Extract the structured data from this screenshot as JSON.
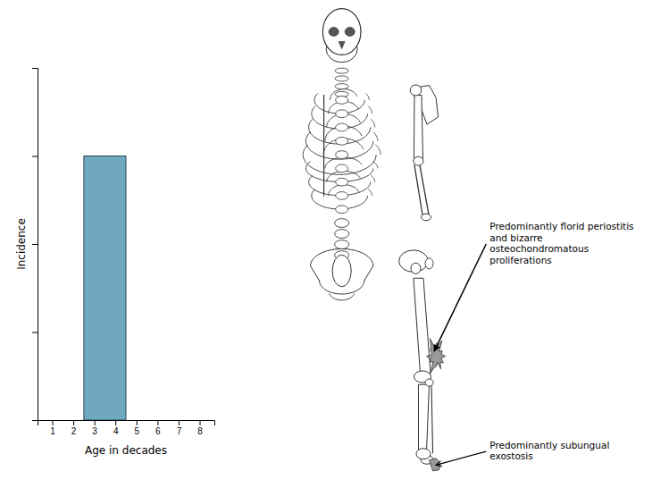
{
  "chart_data": {
    "type": "histogram",
    "bins": [
      2.5,
      4.5
    ],
    "values": [
      0.75
    ],
    "color": "#6fa8c0",
    "xlabel": "Age in decades",
    "ylabel": "Incidence",
    "xlim": [
      0.3,
      8.7
    ],
    "xticks": [
      1,
      2,
      3,
      4,
      5,
      6,
      7,
      8
    ],
    "ylim": [
      0,
      1.0
    ],
    "yticks": [
      0.25,
      0.5,
      0.75
    ],
    "tick_labels": "x",
    "grid": false,
    "annotations": [
      {
        "text": "Predominantly florid periostitis\nand bizarre\nosteochondromatous\nproliferations"
      },
      {
        "text": "Predominantly subungual\nexostosis"
      }
    ]
  }
}
